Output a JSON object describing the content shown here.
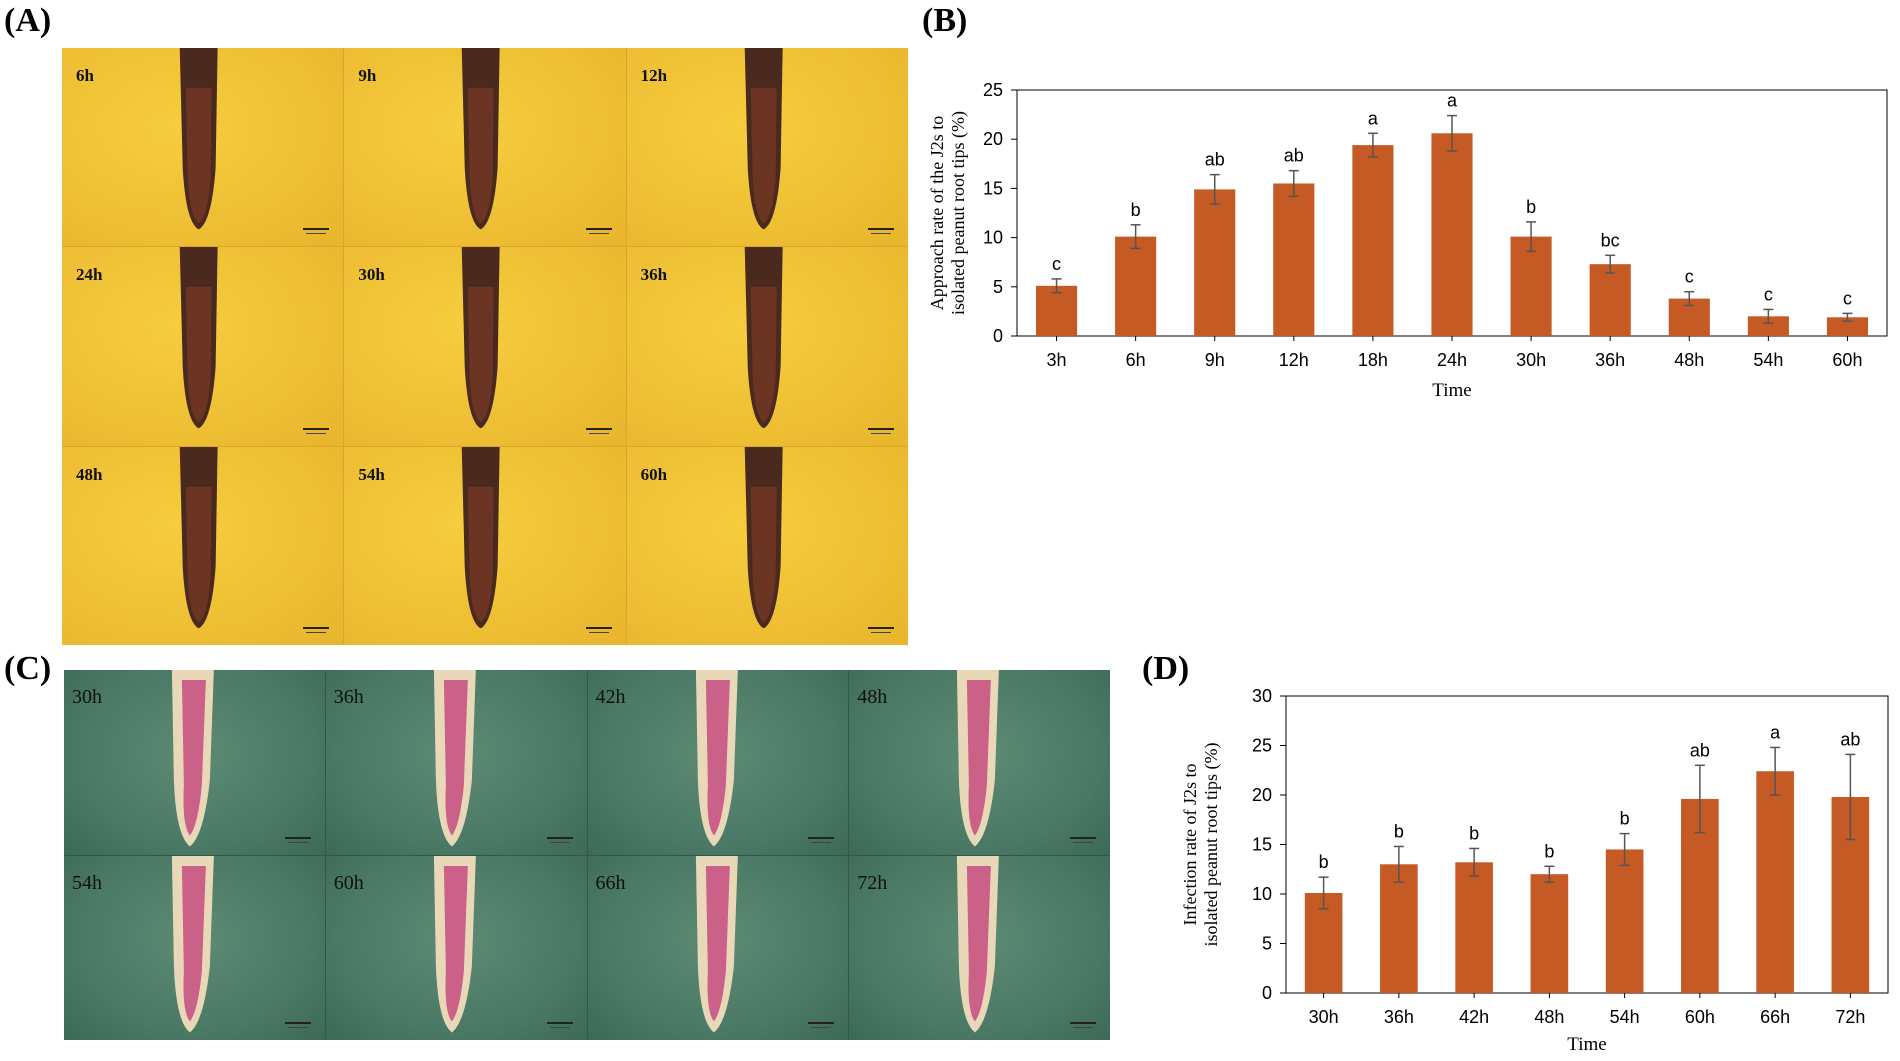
{
  "panels": {
    "a": "(A)",
    "b": "(B)",
    "c": "(C)",
    "d": "(D)"
  },
  "images_a": [
    "6h",
    "9h",
    "12h",
    "24h",
    "30h",
    "36h",
    "48h",
    "54h",
    "60h"
  ],
  "images_c": [
    "30h",
    "36h",
    "42h",
    "48h",
    "54h",
    "60h",
    "66h",
    "72h"
  ],
  "colors": {
    "bar": "#c55a25",
    "imageA": "#efc035",
    "imageC": "#4b7a66"
  },
  "chart_data": [
    {
      "type": "bar",
      "title": "",
      "xlabel": "Time",
      "ylabel_lines": [
        "Approach rate of the J2s to",
        "isolated peanut root tips (%)"
      ],
      "categories": [
        "3h",
        "6h",
        "9h",
        "12h",
        "18h",
        "24h",
        "30h",
        "36h",
        "48h",
        "54h",
        "60h"
      ],
      "values": [
        5.1,
        10.1,
        14.9,
        15.5,
        19.4,
        20.6,
        10.1,
        7.3,
        3.8,
        2.0,
        1.9
      ],
      "errors": [
        0.7,
        1.2,
        1.5,
        1.3,
        1.2,
        1.8,
        1.5,
        0.9,
        0.7,
        0.7,
        0.4
      ],
      "significance": [
        "c",
        "b",
        "ab",
        "ab",
        "a",
        "a",
        "b",
        "bc",
        "c",
        "c",
        "c"
      ],
      "ylim": [
        0,
        25
      ],
      "yticks": [
        0,
        5,
        10,
        15,
        20,
        25
      ]
    },
    {
      "type": "bar",
      "title": "",
      "xlabel": "Time",
      "ylabel_lines": [
        "Infection rate of J2s to",
        "isolated peanut root tips (%)"
      ],
      "categories": [
        "30h",
        "36h",
        "42h",
        "48h",
        "54h",
        "60h",
        "66h",
        "72h"
      ],
      "values": [
        10.1,
        13.0,
        13.2,
        12.0,
        14.5,
        19.6,
        22.4,
        19.8
      ],
      "errors": [
        1.6,
        1.8,
        1.4,
        0.8,
        1.6,
        3.4,
        2.4,
        4.3
      ],
      "significance": [
        "b",
        "b",
        "b",
        "b",
        "b",
        "ab",
        "a",
        "ab"
      ],
      "ylim": [
        0,
        30
      ],
      "yticks": [
        0,
        5,
        10,
        15,
        20,
        25,
        30
      ]
    }
  ]
}
